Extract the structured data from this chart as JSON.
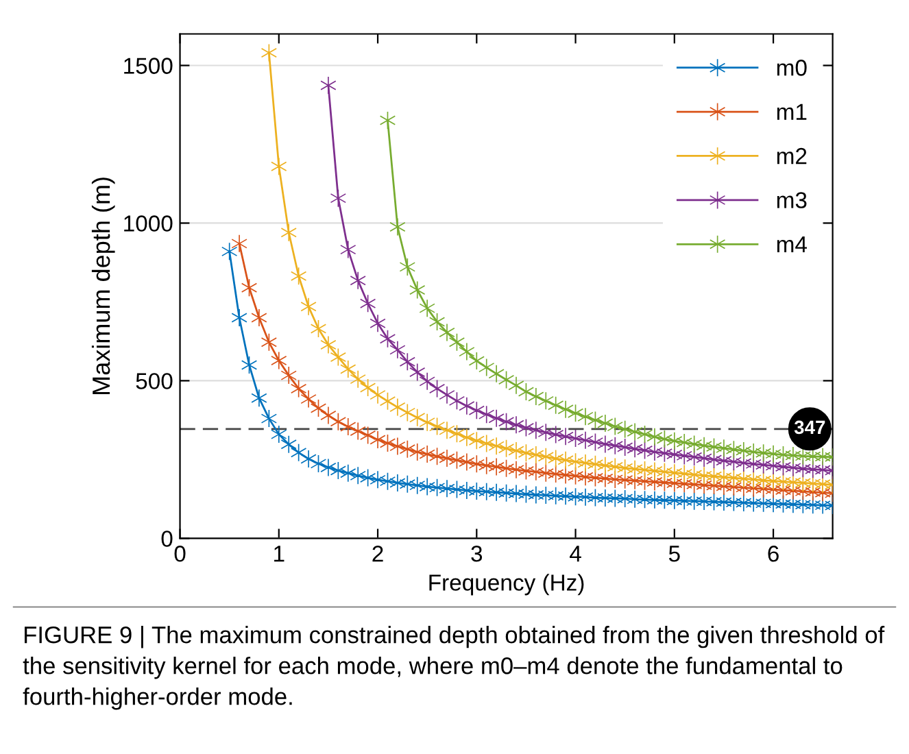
{
  "chart_data": {
    "type": "line",
    "xlabel": "Frequency (Hz)",
    "ylabel": "Maximum depth (m)",
    "xlim": [
      0,
      6.6
    ],
    "ylim": [
      0,
      1600
    ],
    "xticks": [
      0,
      1,
      2,
      3,
      4,
      5,
      6
    ],
    "yticks": [
      0,
      500,
      1000,
      1500
    ],
    "grid": "y",
    "legend": "top right",
    "marker": "cross",
    "line_style": "solid",
    "series": [
      {
        "name": "m0",
        "color": "#0072bd",
        "x": [
          0.5,
          0.6,
          0.7,
          0.8,
          0.9,
          1.0,
          1.1,
          1.2,
          1.3,
          1.4,
          1.5,
          1.6,
          1.7,
          1.8,
          1.9,
          2.0,
          2.1,
          2.2,
          2.3,
          2.4,
          2.5,
          2.6,
          2.7,
          2.8,
          2.9,
          3.0,
          3.1,
          3.2,
          3.3,
          3.4,
          3.5,
          3.6,
          3.7,
          3.8,
          3.9,
          4.0,
          4.1,
          4.2,
          4.3,
          4.4,
          4.5,
          4.6,
          4.7,
          4.8,
          4.9,
          5.0,
          5.1,
          5.2,
          5.3,
          5.4,
          5.5,
          5.6,
          5.7,
          5.8,
          5.9,
          6.0,
          6.1,
          6.2,
          6.3,
          6.4,
          6.5,
          6.6
        ],
        "values": [
          910,
          700,
          550,
          445,
          380,
          330,
          298,
          272,
          252,
          237,
          225,
          215,
          207,
          199,
          192,
          186,
          181,
          176,
          172,
          168,
          164,
          161,
          158,
          155,
          152,
          150,
          148,
          146,
          144,
          142,
          140,
          138,
          137,
          135,
          134,
          132,
          131,
          129,
          128,
          127,
          126,
          124,
          123,
          122,
          121,
          120,
          119,
          118,
          117,
          116,
          115,
          114,
          113,
          112,
          111,
          110,
          109,
          108,
          107,
          106,
          105,
          104
        ]
      },
      {
        "name": "m1",
        "color": "#d95319",
        "x": [
          0.6,
          0.7,
          0.8,
          0.9,
          1.0,
          1.1,
          1.2,
          1.3,
          1.4,
          1.5,
          1.6,
          1.7,
          1.8,
          1.9,
          2.0,
          2.1,
          2.2,
          2.3,
          2.4,
          2.5,
          2.6,
          2.7,
          2.8,
          2.9,
          3.0,
          3.1,
          3.2,
          3.3,
          3.4,
          3.5,
          3.6,
          3.7,
          3.8,
          3.9,
          4.0,
          4.1,
          4.2,
          4.3,
          4.4,
          4.5,
          4.6,
          4.7,
          4.8,
          4.9,
          5.0,
          5.1,
          5.2,
          5.3,
          5.4,
          5.5,
          5.6,
          5.7,
          5.8,
          5.9,
          6.0,
          6.1,
          6.2,
          6.3,
          6.4,
          6.5,
          6.6
        ],
        "values": [
          935,
          795,
          700,
          622,
          564,
          517,
          475,
          442,
          413,
          390,
          370,
          354,
          340,
          327,
          313,
          302,
          292,
          283,
          274,
          267,
          260,
          254,
          248,
          242,
          236,
          231,
          227,
          222,
          218,
          214,
          211,
          207,
          204,
          201,
          198,
          195,
          192,
          190,
          187,
          185,
          183,
          181,
          179,
          177,
          175,
          173,
          171,
          169,
          167,
          165,
          163,
          161,
          159,
          157,
          155,
          153,
          151,
          149,
          147,
          145,
          143
        ]
      },
      {
        "name": "m2",
        "color": "#edb120",
        "x": [
          0.9,
          1.0,
          1.1,
          1.2,
          1.3,
          1.4,
          1.5,
          1.6,
          1.7,
          1.8,
          1.9,
          2.0,
          2.1,
          2.2,
          2.3,
          2.4,
          2.5,
          2.6,
          2.7,
          2.8,
          2.9,
          3.0,
          3.1,
          3.2,
          3.3,
          3.4,
          3.5,
          3.6,
          3.7,
          3.8,
          3.9,
          4.0,
          4.1,
          4.2,
          4.3,
          4.4,
          4.5,
          4.6,
          4.7,
          4.8,
          4.9,
          5.0,
          5.1,
          5.2,
          5.3,
          5.4,
          5.5,
          5.6,
          5.7,
          5.8,
          5.9,
          6.0,
          6.1,
          6.2,
          6.3,
          6.4,
          6.5,
          6.6
        ],
        "values": [
          1540,
          1180,
          970,
          832,
          735,
          665,
          614,
          575,
          537,
          505,
          478,
          455,
          435,
          416,
          399,
          383,
          368,
          355,
          343,
          332,
          320,
          310,
          301,
          293,
          285,
          278,
          271,
          265,
          259,
          253,
          248,
          243,
          239,
          235,
          231,
          227,
          223,
          220,
          217,
          214,
          211,
          208,
          205,
          202,
          199,
          197,
          194,
          192,
          189,
          187,
          184,
          182,
          180,
          178,
          176,
          174,
          172,
          170
        ]
      },
      {
        "name": "m3",
        "color": "#7e2f8e",
        "x": [
          1.5,
          1.6,
          1.7,
          1.8,
          1.9,
          2.0,
          2.1,
          2.2,
          2.3,
          2.4,
          2.5,
          2.6,
          2.7,
          2.8,
          2.9,
          3.0,
          3.1,
          3.2,
          3.3,
          3.4,
          3.5,
          3.6,
          3.7,
          3.8,
          3.9,
          4.0,
          4.1,
          4.2,
          4.3,
          4.4,
          4.5,
          4.6,
          4.7,
          4.8,
          4.9,
          5.0,
          5.1,
          5.2,
          5.3,
          5.4,
          5.5,
          5.6,
          5.7,
          5.8,
          5.9,
          6.0,
          6.1,
          6.2,
          6.3,
          6.4,
          6.5,
          6.6
        ],
        "values": [
          1437,
          1079,
          916,
          818,
          745,
          682,
          633,
          598,
          560,
          527,
          498,
          475,
          455,
          436,
          420,
          406,
          393,
          381,
          370,
          360,
          351,
          343,
          336,
          329,
          323,
          317,
          311,
          305,
          299,
          294,
          289,
          284,
          279,
          274,
          270,
          266,
          262,
          258,
          254,
          250,
          246,
          243,
          239,
          236,
          233,
          230,
          227,
          224,
          221,
          219,
          217,
          215
        ]
      },
      {
        "name": "m4",
        "color": "#77ac30",
        "x": [
          2.1,
          2.2,
          2.3,
          2.4,
          2.5,
          2.6,
          2.7,
          2.8,
          2.9,
          3.0,
          3.1,
          3.2,
          3.3,
          3.4,
          3.5,
          3.6,
          3.7,
          3.8,
          3.9,
          4.0,
          4.1,
          4.2,
          4.3,
          4.4,
          4.5,
          4.6,
          4.7,
          4.8,
          4.9,
          5.0,
          5.1,
          5.2,
          5.3,
          5.4,
          5.5,
          5.6,
          5.7,
          5.8,
          5.9,
          6.0,
          6.1,
          6.2,
          6.3,
          6.4,
          6.5,
          6.6
        ],
        "values": [
          1326,
          988,
          861,
          788,
          730,
          687,
          653,
          622,
          592,
          563,
          542,
          522,
          503,
          485,
          465,
          450,
          436,
          422,
          409,
          397,
          386,
          375,
          365,
          355,
          346,
          338,
          330,
          322,
          315,
          309,
          304,
          299,
          294,
          290,
          286,
          282,
          278,
          274,
          271,
          268,
          265,
          263,
          261,
          260,
          259,
          258
        ]
      }
    ],
    "ref_lines": [
      {
        "axis": "y",
        "value": 347,
        "label": "347",
        "color": "#444444",
        "line_style": "dashed"
      }
    ],
    "annotations": [
      "FIGURE 9 | The maximum constrained depth obtained from the given threshold of the sensitivity kernel for each mode, where m0–m4 denote the fundamental to fourth-higher-order mode."
    ]
  }
}
